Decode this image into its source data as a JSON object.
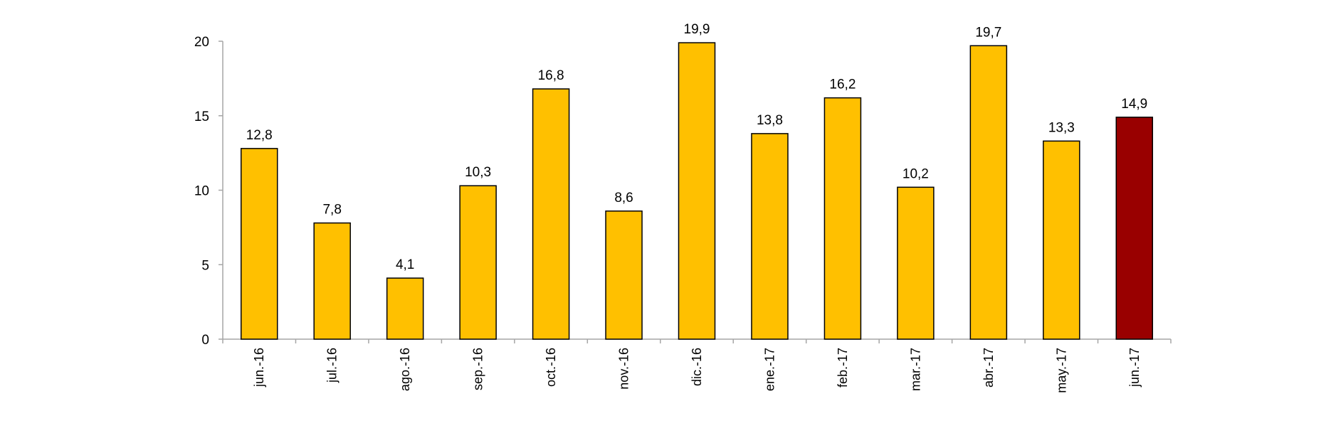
{
  "chart_data": {
    "type": "bar",
    "categories": [
      "jun.-16",
      "jul.-16",
      "ago.-16",
      "sep.-16",
      "oct.-16",
      "nov.-16",
      "dic.-16",
      "ene.-17",
      "feb.-17",
      "mar.-17",
      "abr.-17",
      "may.-17",
      "jun.-17"
    ],
    "values": [
      12.8,
      7.8,
      4.1,
      10.3,
      16.8,
      8.6,
      19.9,
      13.8,
      16.2,
      10.2,
      19.7,
      13.3,
      14.9
    ],
    "value_labels": [
      "12,8",
      "7,8",
      "4,1",
      "10,3",
      "16,8",
      "8,6",
      "19,9",
      "13,8",
      "16,2",
      "10,2",
      "19,7",
      "13,3",
      "14,9"
    ],
    "bar_colors": [
      "#FFC000",
      "#FFC000",
      "#FFC000",
      "#FFC000",
      "#FFC000",
      "#FFC000",
      "#FFC000",
      "#FFC000",
      "#FFC000",
      "#FFC000",
      "#FFC000",
      "#FFC000",
      "#990000"
    ],
    "y_ticks": [
      0,
      5,
      10,
      15,
      20
    ],
    "ylim": [
      0,
      20
    ],
    "grid": false,
    "title": "",
    "xlabel": "",
    "ylabel": ""
  }
}
